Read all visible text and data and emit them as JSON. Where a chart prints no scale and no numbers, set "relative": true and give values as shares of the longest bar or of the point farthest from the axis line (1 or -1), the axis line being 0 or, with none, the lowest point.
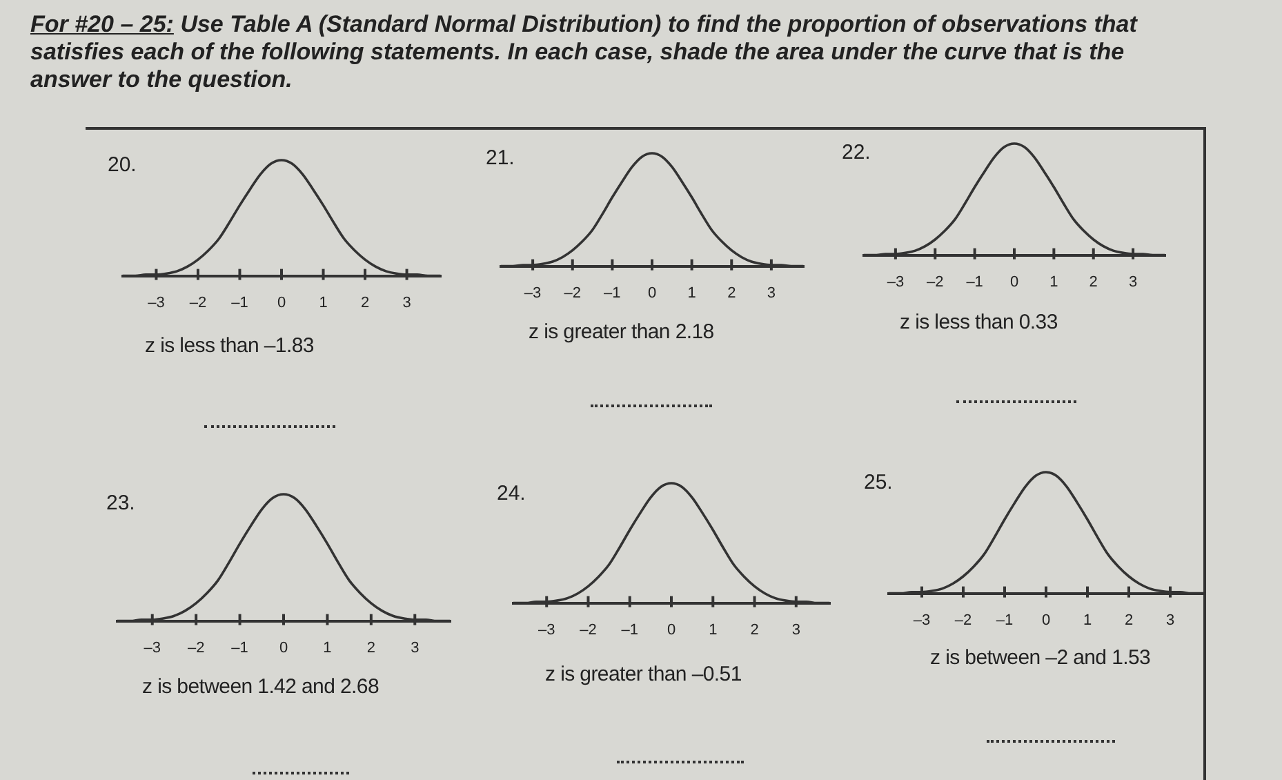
{
  "chart_data": [
    {
      "type": "other",
      "title": "For #20 – 25:",
      "subtitle": "Use Table A (Standard Normal Distribution) to find the proportion of observations that satisfies each of the following statements.  In each case, shade the area under the curve that is the answer to the question."
    },
    {
      "type": "line",
      "title": "20.",
      "xlabel": "z is less than –1.83",
      "relative": true,
      "color": "#333333",
      "marker": "none",
      "x": [
        -3.8,
        -3.5,
        -3.25,
        -3,
        -2.75,
        -2.5,
        -2.25,
        -2,
        -1.75,
        -1.5,
        -1.25,
        -1,
        -0.75,
        -0.5,
        -0.25,
        0,
        0.25,
        0.5,
        0.75,
        1,
        1.25,
        1.5,
        1.75,
        2,
        2.25,
        2.5,
        2.75,
        3,
        3.25,
        3.5,
        3.8
      ],
      "values": [
        0,
        0,
        0.01,
        0.01,
        0.02,
        0.04,
        0.08,
        0.14,
        0.22,
        0.32,
        0.46,
        0.61,
        0.75,
        0.88,
        0.97,
        1,
        0.97,
        0.88,
        0.75,
        0.61,
        0.46,
        0.32,
        0.22,
        0.14,
        0.08,
        0.04,
        0.02,
        0.01,
        0.01,
        0,
        0
      ],
      "xlim": [
        -3.8,
        3.8
      ],
      "xticks": [
        {
          "value": -3,
          "label": "–3"
        },
        {
          "value": -2,
          "label": "–2"
        },
        {
          "value": -1,
          "label": "–1"
        },
        0,
        1,
        2,
        3
      ]
    },
    {
      "type": "line",
      "title": "21.",
      "xlabel": "z is greater than 2.18",
      "relative": true,
      "color": "#333333",
      "marker": "none",
      "x": [
        -3.8,
        -3.5,
        -3.25,
        -3,
        -2.75,
        -2.5,
        -2.25,
        -2,
        -1.75,
        -1.5,
        -1.25,
        -1,
        -0.75,
        -0.5,
        -0.25,
        0,
        0.25,
        0.5,
        0.75,
        1,
        1.25,
        1.5,
        1.75,
        2,
        2.25,
        2.5,
        2.75,
        3,
        3.25,
        3.5,
        3.8
      ],
      "values": [
        0,
        0,
        0.01,
        0.01,
        0.02,
        0.04,
        0.08,
        0.14,
        0.22,
        0.32,
        0.46,
        0.61,
        0.75,
        0.88,
        0.97,
        1,
        0.97,
        0.88,
        0.75,
        0.61,
        0.46,
        0.32,
        0.22,
        0.14,
        0.08,
        0.04,
        0.02,
        0.01,
        0.01,
        0,
        0
      ],
      "xlim": [
        -3.8,
        3.8
      ],
      "xticks": [
        {
          "value": -3,
          "label": "–3"
        },
        {
          "value": -2,
          "label": "–2"
        },
        {
          "value": -1,
          "label": "–1"
        },
        0,
        1,
        2,
        3
      ]
    },
    {
      "type": "line",
      "title": "22.",
      "xlabel": "z is less than 0.33",
      "relative": true,
      "color": "#333333",
      "marker": "none",
      "x": [
        -3.8,
        -3.5,
        -3.25,
        -3,
        -2.75,
        -2.5,
        -2.25,
        -2,
        -1.75,
        -1.5,
        -1.25,
        -1,
        -0.75,
        -0.5,
        -0.25,
        0,
        0.25,
        0.5,
        0.75,
        1,
        1.25,
        1.5,
        1.75,
        2,
        2.25,
        2.5,
        2.75,
        3,
        3.25,
        3.5,
        3.8
      ],
      "values": [
        0,
        0,
        0.01,
        0.01,
        0.02,
        0.04,
        0.08,
        0.14,
        0.22,
        0.32,
        0.46,
        0.61,
        0.75,
        0.88,
        0.97,
        1,
        0.97,
        0.88,
        0.75,
        0.61,
        0.46,
        0.32,
        0.22,
        0.14,
        0.08,
        0.04,
        0.02,
        0.01,
        0.01,
        0,
        0
      ],
      "xlim": [
        -3.8,
        3.8
      ],
      "xticks": [
        {
          "value": -3,
          "label": "–3"
        },
        {
          "value": -2,
          "label": "–2"
        },
        {
          "value": -1,
          "label": "–1"
        },
        0,
        1,
        2,
        3
      ]
    },
    {
      "type": "line",
      "title": "23.",
      "xlabel": "z is between 1.42 and 2.68",
      "relative": true,
      "color": "#333333",
      "marker": "none",
      "x": [
        -3.8,
        -3.5,
        -3.25,
        -3,
        -2.75,
        -2.5,
        -2.25,
        -2,
        -1.75,
        -1.5,
        -1.25,
        -1,
        -0.75,
        -0.5,
        -0.25,
        0,
        0.25,
        0.5,
        0.75,
        1,
        1.25,
        1.5,
        1.75,
        2,
        2.25,
        2.5,
        2.75,
        3,
        3.25,
        3.5,
        3.8
      ],
      "values": [
        0,
        0,
        0.01,
        0.01,
        0.02,
        0.04,
        0.08,
        0.14,
        0.22,
        0.32,
        0.46,
        0.61,
        0.75,
        0.88,
        0.97,
        1,
        0.97,
        0.88,
        0.75,
        0.61,
        0.46,
        0.32,
        0.22,
        0.14,
        0.08,
        0.04,
        0.02,
        0.01,
        0.01,
        0,
        0
      ],
      "xlim": [
        -3.8,
        3.8
      ],
      "xticks": [
        {
          "value": -3,
          "label": "–3"
        },
        {
          "value": -2,
          "label": "–2"
        },
        {
          "value": -1,
          "label": "–1"
        },
        0,
        1,
        2,
        3
      ]
    },
    {
      "type": "line",
      "title": "24.",
      "xlabel": "z is greater than –0.51",
      "relative": true,
      "color": "#333333",
      "marker": "none",
      "x": [
        -3.8,
        -3.5,
        -3.25,
        -3,
        -2.75,
        -2.5,
        -2.25,
        -2,
        -1.75,
        -1.5,
        -1.25,
        -1,
        -0.75,
        -0.5,
        -0.25,
        0,
        0.25,
        0.5,
        0.75,
        1,
        1.25,
        1.5,
        1.75,
        2,
        2.25,
        2.5,
        2.75,
        3,
        3.25,
        3.5,
        3.8
      ],
      "values": [
        0,
        0,
        0.01,
        0.01,
        0.02,
        0.04,
        0.08,
        0.14,
        0.22,
        0.32,
        0.46,
        0.61,
        0.75,
        0.88,
        0.97,
        1,
        0.97,
        0.88,
        0.75,
        0.61,
        0.46,
        0.32,
        0.22,
        0.14,
        0.08,
        0.04,
        0.02,
        0.01,
        0.01,
        0,
        0
      ],
      "xlim": [
        -3.8,
        3.8
      ],
      "xticks": [
        {
          "value": -3,
          "label": "–3"
        },
        {
          "value": -2,
          "label": "–2"
        },
        {
          "value": -1,
          "label": "–1"
        },
        0,
        1,
        2,
        3
      ]
    },
    {
      "type": "line",
      "title": "25.",
      "xlabel": "z is between –2 and 1.53",
      "relative": true,
      "color": "#333333",
      "marker": "none",
      "x": [
        -3.8,
        -3.5,
        -3.25,
        -3,
        -2.75,
        -2.5,
        -2.25,
        -2,
        -1.75,
        -1.5,
        -1.25,
        -1,
        -0.75,
        -0.5,
        -0.25,
        0,
        0.25,
        0.5,
        0.75,
        1,
        1.25,
        1.5,
        1.75,
        2,
        2.25,
        2.5,
        2.75,
        3,
        3.25,
        3.5,
        3.8
      ],
      "values": [
        0,
        0,
        0.01,
        0.01,
        0.02,
        0.04,
        0.08,
        0.14,
        0.22,
        0.32,
        0.46,
        0.61,
        0.75,
        0.88,
        0.97,
        1,
        0.97,
        0.88,
        0.75,
        0.61,
        0.46,
        0.32,
        0.22,
        0.14,
        0.08,
        0.04,
        0.02,
        0.01,
        0.01,
        0,
        0
      ],
      "xlim": [
        -3.8,
        3.8
      ],
      "xticks": [
        {
          "value": -3,
          "label": "–3"
        },
        {
          "value": -2,
          "label": "–2"
        },
        {
          "value": -1,
          "label": "–1"
        },
        0,
        1,
        2,
        3
      ]
    }
  ]
}
